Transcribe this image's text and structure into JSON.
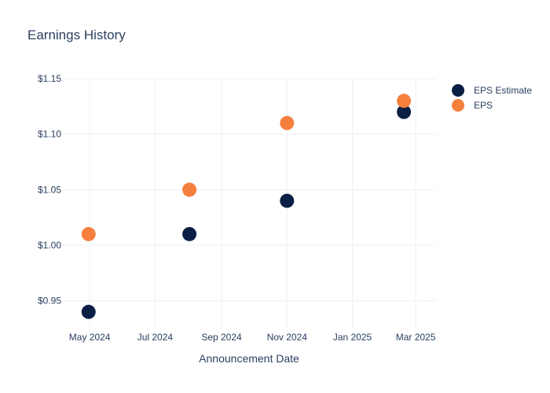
{
  "chart_data": {
    "type": "scatter",
    "title": "Earnings History",
    "xlabel": "Announcement Date",
    "ylabel": "",
    "x_ticks": [
      {
        "date": "2024-05-01",
        "label": "May 2024"
      },
      {
        "date": "2024-07-01",
        "label": "Jul 2024"
      },
      {
        "date": "2024-09-01",
        "label": "Sep 2024"
      },
      {
        "date": "2024-11-01",
        "label": "Nov 2024"
      },
      {
        "date": "2025-01-01",
        "label": "Jan 2025"
      },
      {
        "date": "2025-03-01",
        "label": "Mar 2025"
      }
    ],
    "y_ticks": [
      {
        "value": 0.95,
        "label": "$0.95"
      },
      {
        "value": 1.0,
        "label": "$1.00"
      },
      {
        "value": 1.05,
        "label": "$1.05"
      },
      {
        "value": 1.1,
        "label": "$1.10"
      },
      {
        "value": 1.15,
        "label": "$1.15"
      }
    ],
    "xlim": [
      "2024-04-06",
      "2025-03-20"
    ],
    "ylim": [
      0.925,
      1.15
    ],
    "grid": true,
    "legend_position": "top-right",
    "series": [
      {
        "name": "EPS Estimate",
        "color": "#0a1f44",
        "points": [
          {
            "x": "2024-04-30",
            "y": 0.94
          },
          {
            "x": "2024-08-02",
            "y": 1.01
          },
          {
            "x": "2024-11-01",
            "y": 1.04
          },
          {
            "x": "2025-02-18",
            "y": 1.12
          }
        ]
      },
      {
        "name": "EPS",
        "color": "#f5803e",
        "points": [
          {
            "x": "2024-04-30",
            "y": 1.01
          },
          {
            "x": "2024-08-02",
            "y": 1.05
          },
          {
            "x": "2024-11-01",
            "y": 1.11
          },
          {
            "x": "2025-02-18",
            "y": 1.13
          }
        ]
      }
    ]
  }
}
